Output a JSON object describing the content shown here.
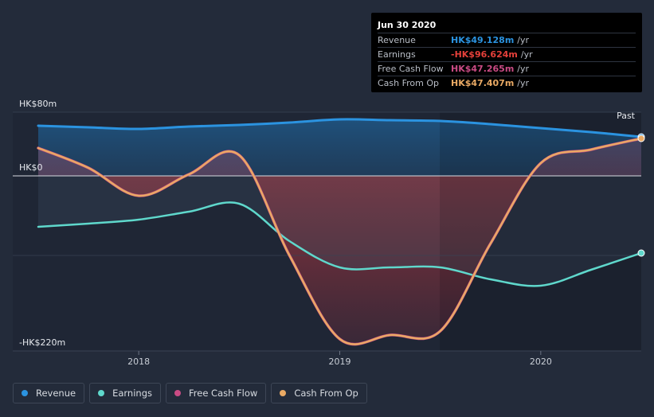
{
  "chart_data": {
    "type": "area",
    "x": [
      2017.5,
      2017.75,
      2018.0,
      2018.25,
      2018.5,
      2018.75,
      2019.0,
      2019.25,
      2019.5,
      2019.75,
      2020.0,
      2020.25,
      2020.5
    ],
    "series": [
      {
        "name": "Revenue",
        "color": "#2b93e0",
        "values": [
          63,
          61,
          59,
          62,
          64,
          67,
          71,
          70,
          69,
          65,
          60,
          55,
          49
        ]
      },
      {
        "name": "Earnings",
        "color": "#5fd8cc",
        "values": [
          -64,
          -60,
          -55,
          -45,
          -35,
          -82,
          -115,
          -115,
          -115,
          -130,
          -138,
          -118,
          -97
        ]
      },
      {
        "name": "Free Cash Flow",
        "color": "#c94b84",
        "values": [
          35,
          10,
          -25,
          2,
          26,
          -100,
          -205,
          -200,
          -195,
          -85,
          16,
          33,
          47
        ]
      },
      {
        "name": "Cash From Op",
        "color": "#e9a964",
        "values": [
          35,
          10,
          -25,
          2,
          26,
          -100,
          -205,
          -200,
          -195,
          -85,
          16,
          33,
          47
        ]
      }
    ],
    "ylim": [
      -220,
      80
    ],
    "yticks": [
      "HK$80m",
      "HK$0",
      "-HK$220m"
    ],
    "xticks": [
      {
        "label": "2018",
        "value": 2018
      },
      {
        "label": "2019",
        "value": 2019
      },
      {
        "label": "2020",
        "value": 2020
      }
    ],
    "past_label": "Past",
    "forecast_start": 2019.5
  },
  "tooltip": {
    "date": "Jun 30 2020",
    "rows": [
      {
        "label": "Revenue",
        "value": "HK$49.128m",
        "unit": "/yr",
        "color": "#2b93e0"
      },
      {
        "label": "Earnings",
        "value": "-HK$96.624m",
        "unit": "/yr",
        "color": "#e6403a"
      },
      {
        "label": "Free Cash Flow",
        "value": "HK$47.265m",
        "unit": "/yr",
        "color": "#c94b84"
      },
      {
        "label": "Cash From Op",
        "value": "HK$47.407m",
        "unit": "/yr",
        "color": "#e9a964"
      }
    ]
  },
  "legend": [
    {
      "label": "Revenue",
      "color": "#2b93e0"
    },
    {
      "label": "Earnings",
      "color": "#5fd8cc"
    },
    {
      "label": "Free Cash Flow",
      "color": "#c94b84"
    },
    {
      "label": "Cash From Op",
      "color": "#e9a964"
    }
  ]
}
